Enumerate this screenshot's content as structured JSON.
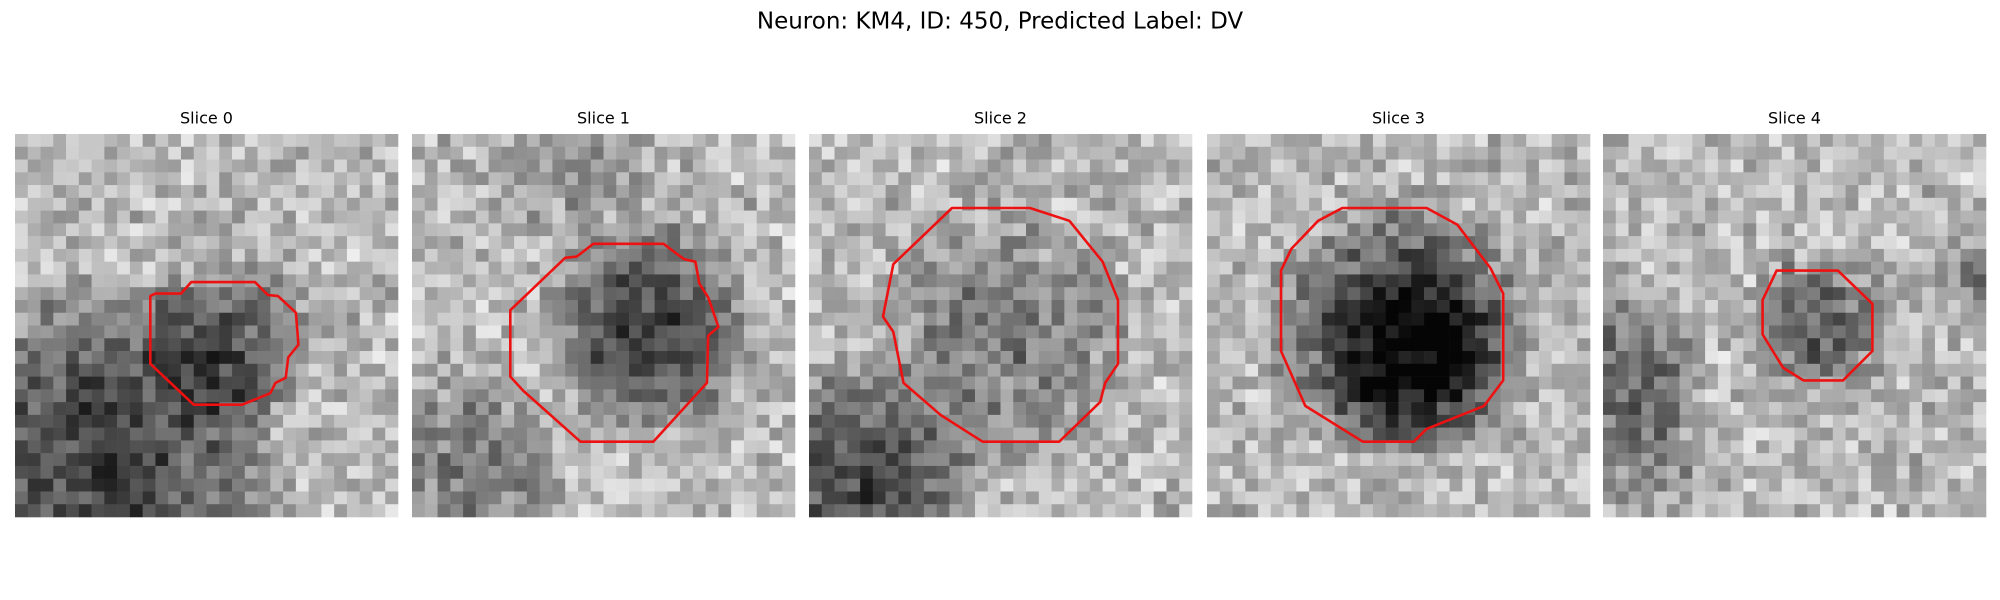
{
  "figure": {
    "title": "Neuron: KM4, ID: 450, Predicted Label: DV",
    "panels": [
      {
        "title": "Slice 0"
      },
      {
        "title": "Slice 1"
      },
      {
        "title": "Slice 2"
      },
      {
        "title": "Slice 3"
      },
      {
        "title": "Slice 4"
      }
    ]
  }
}
